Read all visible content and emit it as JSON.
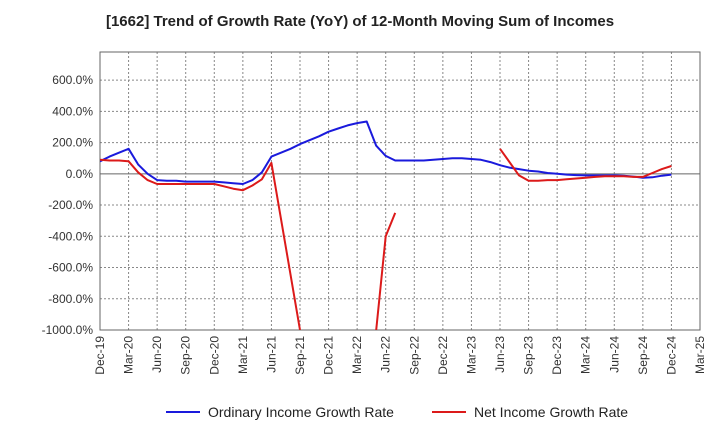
{
  "title": "[1662]  Trend of Growth Rate (YoY) of 12-Month Moving Sum of Incomes",
  "legend": {
    "ordinary_label": "Ordinary Income Growth Rate",
    "net_label": "Net Income Growth Rate"
  },
  "colors": {
    "ordinary": "#1a1adc",
    "net": "#dc1a1a",
    "grid": "#888888",
    "zero": "#666666"
  },
  "chart_data": {
    "type": "line",
    "title": "[1662]  Trend of Growth Rate (YoY) of 12-Month Moving Sum of Incomes",
    "x_tick_labels": [
      "Dec-19",
      "Mar-20",
      "Jun-20",
      "Sep-20",
      "Dec-20",
      "Mar-21",
      "Jun-21",
      "Sep-21",
      "Dec-21",
      "Mar-22",
      "Jun-22",
      "Sep-22",
      "Dec-22",
      "Mar-23",
      "Jun-23",
      "Sep-23",
      "Dec-23",
      "Mar-24",
      "Jun-24",
      "Sep-24",
      "Dec-24",
      "Mar-25"
    ],
    "y_ticks": [
      600,
      400,
      200,
      0,
      -200,
      -400,
      -600,
      -800,
      -1000
    ],
    "y_tick_labels": [
      "600.0%",
      "400.0%",
      "200.0%",
      "0.0%",
      "-200.0%",
      "-400.0%",
      "-600.0%",
      "-800.0%",
      "-1000.0%"
    ],
    "ylim": [
      -1000,
      780
    ],
    "x_range_months": [
      "Dec-19",
      "Mar-25"
    ],
    "grid": true,
    "legend_position": "bottom",
    "series": [
      {
        "name": "Ordinary Income Growth Rate",
        "color": "#1a1adc",
        "points": [
          [
            "Dec-19",
            80
          ],
          [
            "Jan-20",
            110
          ],
          [
            "Feb-20",
            135
          ],
          [
            "Mar-20",
            160
          ],
          [
            "Apr-20",
            60
          ],
          [
            "May-20",
            0
          ],
          [
            "Jun-20",
            -40
          ],
          [
            "Jul-20",
            -45
          ],
          [
            "Aug-20",
            -45
          ],
          [
            "Sep-20",
            -50
          ],
          [
            "Oct-20",
            -50
          ],
          [
            "Nov-20",
            -50
          ],
          [
            "Dec-20",
            -50
          ],
          [
            "Jan-21",
            -55
          ],
          [
            "Feb-21",
            -60
          ],
          [
            "Mar-21",
            -65
          ],
          [
            "Apr-21",
            -40
          ],
          [
            "May-21",
            10
          ],
          [
            "Jun-21",
            110
          ],
          [
            "Jul-21",
            135
          ],
          [
            "Aug-21",
            160
          ],
          [
            "Sep-21",
            190
          ],
          [
            "Oct-21",
            215
          ],
          [
            "Nov-21",
            240
          ],
          [
            "Dec-21",
            270
          ],
          [
            "Jan-22",
            290
          ],
          [
            "Feb-22",
            310
          ],
          [
            "Mar-22",
            325
          ],
          [
            "Apr-22",
            335
          ],
          [
            "May-22",
            180
          ],
          [
            "Jun-22",
            115
          ],
          [
            "Jul-22",
            85
          ],
          [
            "Aug-22",
            85
          ],
          [
            "Sep-22",
            85
          ],
          [
            "Oct-22",
            85
          ],
          [
            "Nov-22",
            90
          ],
          [
            "Dec-22",
            95
          ],
          [
            "Jan-23",
            100
          ],
          [
            "Feb-23",
            100
          ],
          [
            "Mar-23",
            95
          ],
          [
            "Apr-23",
            90
          ],
          [
            "May-23",
            75
          ],
          [
            "Jun-23",
            55
          ],
          [
            "Jul-23",
            40
          ],
          [
            "Aug-23",
            30
          ],
          [
            "Sep-23",
            20
          ],
          [
            "Oct-23",
            15
          ],
          [
            "Nov-23",
            5
          ],
          [
            "Dec-23",
            0
          ],
          [
            "Jan-24",
            -5
          ],
          [
            "Feb-24",
            -8
          ],
          [
            "Mar-24",
            -10
          ],
          [
            "Apr-24",
            -10
          ],
          [
            "May-24",
            -10
          ],
          [
            "Jun-24",
            -10
          ],
          [
            "Jul-24",
            -12
          ],
          [
            "Aug-24",
            -18
          ],
          [
            "Sep-24",
            -25
          ],
          [
            "Oct-24",
            -22
          ],
          [
            "Nov-24",
            -12
          ],
          [
            "Dec-24",
            -5
          ]
        ]
      },
      {
        "name": "Net Income Growth Rate",
        "color": "#dc1a1a",
        "segments": [
          [
            [
              "Dec-19",
              90
            ],
            [
              "Jan-20",
              85
            ],
            [
              "Feb-20",
              85
            ],
            [
              "Mar-20",
              80
            ],
            [
              "Apr-20",
              10
            ],
            [
              "May-20",
              -40
            ],
            [
              "Jun-20",
              -65
            ],
            [
              "Jul-20",
              -65
            ],
            [
              "Aug-20",
              -65
            ],
            [
              "Sep-20",
              -65
            ],
            [
              "Oct-20",
              -65
            ],
            [
              "Nov-20",
              -65
            ],
            [
              "Dec-20",
              -65
            ],
            [
              "Jan-21",
              -80
            ],
            [
              "Feb-21",
              -95
            ],
            [
              "Mar-21",
              -105
            ],
            [
              "Apr-21",
              -75
            ],
            [
              "May-21",
              -35
            ],
            [
              "Jun-21",
              70
            ],
            [
              "Sep-21",
              -1000
            ]
          ],
          [
            [
              "May-22",
              -1000
            ],
            [
              "Jun-22",
              -400
            ],
            [
              "Jul-22",
              -250
            ]
          ],
          [
            [
              "Jun-23",
              160
            ],
            [
              "Aug-23",
              -10
            ],
            [
              "Sep-23",
              -45
            ],
            [
              "Oct-23",
              -45
            ],
            [
              "Nov-23",
              -40
            ],
            [
              "Dec-23",
              -40
            ],
            [
              "Jan-24",
              -35
            ],
            [
              "Feb-24",
              -30
            ],
            [
              "Mar-24",
              -25
            ],
            [
              "Apr-24",
              -20
            ],
            [
              "May-24",
              -15
            ],
            [
              "Jun-24",
              -15
            ],
            [
              "Jul-24",
              -15
            ],
            [
              "Aug-24",
              -20
            ],
            [
              "Sep-24",
              -20
            ],
            [
              "Oct-24",
              5
            ],
            [
              "Nov-24",
              30
            ],
            [
              "Dec-24",
              50
            ]
          ]
        ]
      }
    ]
  }
}
